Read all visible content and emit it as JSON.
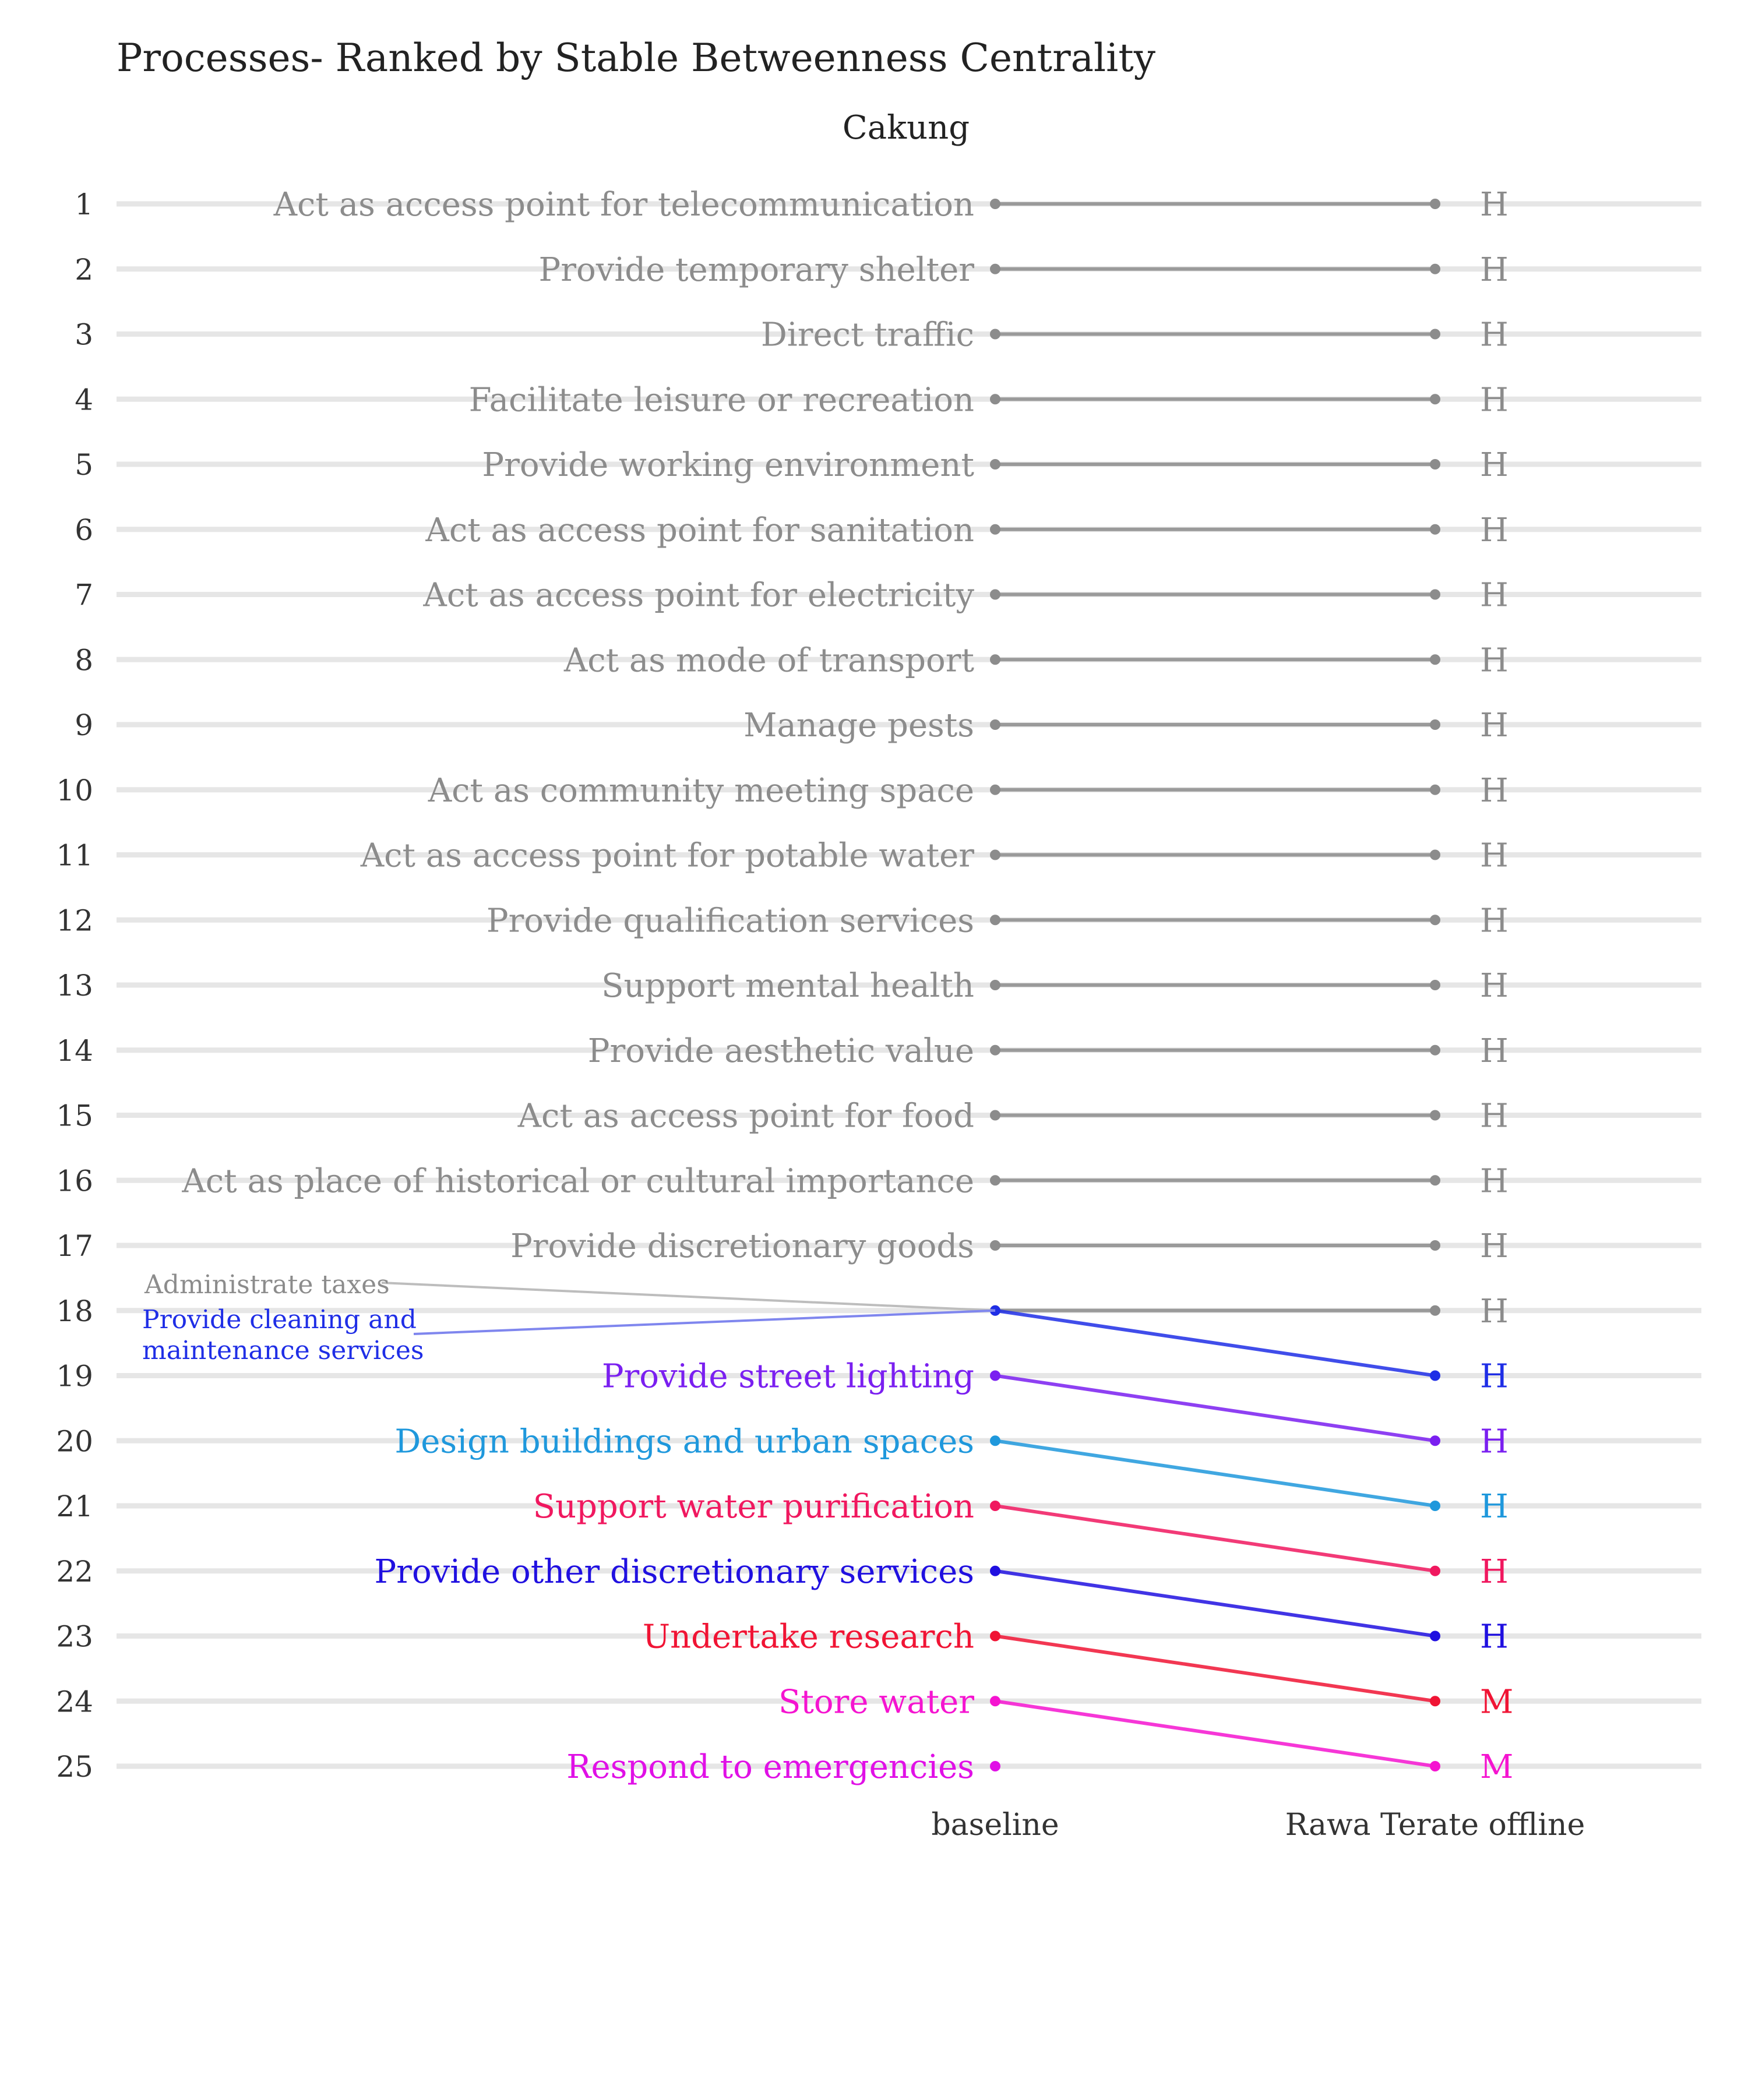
{
  "chart_data": {
    "type": "line",
    "title": "Processes- Ranked by Stable Betweenness Centrality",
    "subtitle": "Cakung",
    "x": [
      "baseline",
      "Rawa Terate offline"
    ],
    "ranks": [
      1,
      2,
      3,
      4,
      5,
      6,
      7,
      8,
      9,
      10,
      11,
      12,
      13,
      14,
      15,
      16,
      17,
      18,
      19,
      20,
      21,
      22,
      23,
      24,
      25
    ],
    "ylim": [
      1,
      25
    ],
    "y_reversed": true,
    "grid": true,
    "series": [
      {
        "name": "Act as access point for telecommunication",
        "values": [
          1,
          1
        ],
        "color": "#8c8c8c",
        "end_label": "H",
        "label_side": "right"
      },
      {
        "name": "Provide temporary shelter",
        "values": [
          2,
          2
        ],
        "color": "#8c8c8c",
        "end_label": "H",
        "label_side": "right"
      },
      {
        "name": "Direct traffic",
        "values": [
          3,
          3
        ],
        "color": "#8c8c8c",
        "end_label": "H",
        "label_side": "right"
      },
      {
        "name": "Facilitate leisure or recreation",
        "values": [
          4,
          4
        ],
        "color": "#8c8c8c",
        "end_label": "H",
        "label_side": "right"
      },
      {
        "name": "Provide working environment",
        "values": [
          5,
          5
        ],
        "color": "#8c8c8c",
        "end_label": "H",
        "label_side": "right"
      },
      {
        "name": "Act as access point for sanitation",
        "values": [
          6,
          6
        ],
        "color": "#8c8c8c",
        "end_label": "H",
        "label_side": "right"
      },
      {
        "name": "Act as access point for electricity",
        "values": [
          7,
          7
        ],
        "color": "#8c8c8c",
        "end_label": "H",
        "label_side": "right"
      },
      {
        "name": "Act as mode of transport",
        "values": [
          8,
          8
        ],
        "color": "#8c8c8c",
        "end_label": "H",
        "label_side": "right"
      },
      {
        "name": "Manage pests",
        "values": [
          9,
          9
        ],
        "color": "#8c8c8c",
        "end_label": "H",
        "label_side": "right"
      },
      {
        "name": "Act as community meeting space",
        "values": [
          10,
          10
        ],
        "color": "#8c8c8c",
        "end_label": "H",
        "label_side": "right"
      },
      {
        "name": "Act as access point for potable water",
        "values": [
          11,
          11
        ],
        "color": "#8c8c8c",
        "end_label": "H",
        "label_side": "right"
      },
      {
        "name": "Provide qualification services",
        "values": [
          12,
          12
        ],
        "color": "#8c8c8c",
        "end_label": "H",
        "label_side": "right"
      },
      {
        "name": "Support mental health",
        "values": [
          13,
          13
        ],
        "color": "#8c8c8c",
        "end_label": "H",
        "label_side": "right"
      },
      {
        "name": "Provide aesthetic value",
        "values": [
          14,
          14
        ],
        "color": "#8c8c8c",
        "end_label": "H",
        "label_side": "right"
      },
      {
        "name": "Act as access point for food",
        "values": [
          15,
          15
        ],
        "color": "#8c8c8c",
        "end_label": "H",
        "label_side": "right"
      },
      {
        "name": "Act as place of historical or cultural importance",
        "values": [
          16,
          16
        ],
        "color": "#8c8c8c",
        "end_label": "H",
        "label_side": "right"
      },
      {
        "name": "Provide discretionary goods",
        "values": [
          17,
          17
        ],
        "color": "#8c8c8c",
        "end_label": "H",
        "label_side": "right"
      },
      {
        "name": "Administrate taxes",
        "values": [
          18,
          18
        ],
        "color": "#8c8c8c",
        "end_label": "H",
        "label_side": "left-callout"
      },
      {
        "name": "Provide cleaning and maintenance services",
        "values": [
          18,
          19
        ],
        "color": "#1f2ee6",
        "end_label": "H",
        "label_side": "left-callout"
      },
      {
        "name": "Provide street lighting",
        "values": [
          19,
          20
        ],
        "color": "#7a1ff0",
        "end_label": "H",
        "label_side": "right"
      },
      {
        "name": "Design buildings and urban spaces",
        "values": [
          20,
          21
        ],
        "color": "#1f98dc",
        "end_label": "H",
        "label_side": "right"
      },
      {
        "name": "Support water purification",
        "values": [
          21,
          22
        ],
        "color": "#f0185f",
        "end_label": "H",
        "label_side": "right"
      },
      {
        "name": "Provide other discretionary services",
        "values": [
          22,
          23
        ],
        "color": "#2010e0",
        "end_label": "H",
        "label_side": "right"
      },
      {
        "name": "Undertake research",
        "values": [
          23,
          24
        ],
        "color": "#f01434",
        "end_label": "M",
        "label_side": "right"
      },
      {
        "name": "Store water",
        "values": [
          24,
          25
        ],
        "color": "#f514d0",
        "end_label": "M",
        "label_side": "right"
      },
      {
        "name": "Respond to emergencies",
        "values": [
          25,
          null
        ],
        "color": "#e010e6",
        "end_label": "",
        "label_side": "right"
      }
    ],
    "callout_labels": [
      {
        "lines": [
          "Administrate taxes"
        ],
        "color": "#8c8c8c",
        "line_color": "#bdbdbd"
      },
      {
        "lines": [
          "Provide cleaning and",
          "maintenance services"
        ],
        "color": "#1f2ee6",
        "line_color": "#7f86ee"
      }
    ]
  }
}
